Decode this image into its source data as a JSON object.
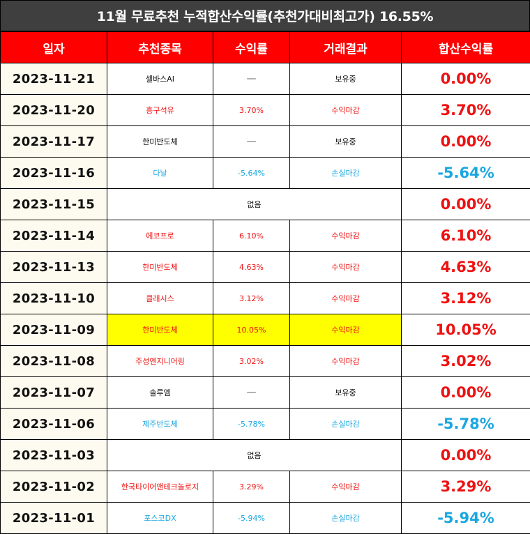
{
  "title": "11월 무료추천 누적합산수익률(추천가대비최고가) 16.55%",
  "headers": {
    "date": "일자",
    "stock": "추천종목",
    "return": "수익률",
    "result": "거래결과",
    "total": "합산수익률"
  },
  "colors": {
    "header_bg": "#ff0000",
    "title_bg": "#3f3f3f",
    "profit": "#ee1111",
    "loss": "#1aa7e0",
    "highlight": "#ffff00",
    "date_bg": "#fdfbef"
  },
  "rows": [
    {
      "date": "2023-11-21",
      "stock": "셀바스AI",
      "return": "—",
      "result": "보유중",
      "total": "0.00%",
      "tone": "hold",
      "merged": false,
      "highlight": false
    },
    {
      "date": "2023-11-20",
      "stock": "흥구석유",
      "return": "3.70%",
      "result": "수익마감",
      "total": "3.70%",
      "tone": "profit",
      "merged": false,
      "highlight": false
    },
    {
      "date": "2023-11-17",
      "stock": "한미반도체",
      "return": "—",
      "result": "보유중",
      "total": "0.00%",
      "tone": "hold",
      "merged": false,
      "highlight": false
    },
    {
      "date": "2023-11-16",
      "stock": "다날",
      "return": "-5.64%",
      "result": "손실마감",
      "total": "-5.64%",
      "tone": "loss",
      "merged": false,
      "highlight": false
    },
    {
      "date": "2023-11-15",
      "stock": "없음",
      "return": "",
      "result": "",
      "total": "0.00%",
      "tone": "none",
      "merged": true,
      "highlight": false
    },
    {
      "date": "2023-11-14",
      "stock": "에코프로",
      "return": "6.10%",
      "result": "수익마감",
      "total": "6.10%",
      "tone": "profit",
      "merged": false,
      "highlight": false
    },
    {
      "date": "2023-11-13",
      "stock": "한미반도체",
      "return": "4.63%",
      "result": "수익마감",
      "total": "4.63%",
      "tone": "profit",
      "merged": false,
      "highlight": false
    },
    {
      "date": "2023-11-10",
      "stock": "클래시스",
      "return": "3.12%",
      "result": "수익마감",
      "total": "3.12%",
      "tone": "profit",
      "merged": false,
      "highlight": false
    },
    {
      "date": "2023-11-09",
      "stock": "한미반도체",
      "return": "10.05%",
      "result": "수익마감",
      "total": "10.05%",
      "tone": "profit",
      "merged": false,
      "highlight": true
    },
    {
      "date": "2023-11-08",
      "stock": "주성엔지니어링",
      "return": "3.02%",
      "result": "수익마감",
      "total": "3.02%",
      "tone": "profit",
      "merged": false,
      "highlight": false
    },
    {
      "date": "2023-11-07",
      "stock": "솔루엠",
      "return": "—",
      "result": "보유중",
      "total": "0.00%",
      "tone": "hold",
      "merged": false,
      "highlight": false
    },
    {
      "date": "2023-11-06",
      "stock": "제주반도체",
      "return": "-5.78%",
      "result": "손실마감",
      "total": "-5.78%",
      "tone": "loss",
      "merged": false,
      "highlight": false
    },
    {
      "date": "2023-11-03",
      "stock": "없음",
      "return": "",
      "result": "",
      "total": "0.00%",
      "tone": "none",
      "merged": true,
      "highlight": false
    },
    {
      "date": "2023-11-02",
      "stock": "한국타이어앤테크놀로지",
      "return": "3.29%",
      "result": "수익마감",
      "total": "3.29%",
      "tone": "profit",
      "merged": false,
      "highlight": false
    },
    {
      "date": "2023-11-01",
      "stock": "포스코DX",
      "return": "-5.94%",
      "result": "손실마감",
      "total": "-5.94%",
      "tone": "loss",
      "merged": false,
      "highlight": false
    }
  ]
}
